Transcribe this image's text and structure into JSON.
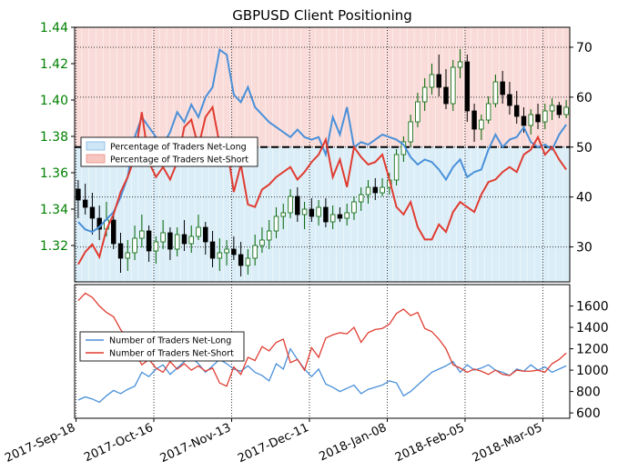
{
  "chart_data": [
    {
      "type": "candlestick",
      "title": "GBPUSD Client Positioning",
      "ylim": [
        1.3,
        1.44
      ],
      "yticks": [
        "1.32",
        "1.34",
        "1.36",
        "1.38",
        "1.40",
        "1.42",
        "1.44"
      ],
      "right_axis": {
        "ylim": [
          23,
          74
        ],
        "ticks": [
          "30",
          "40",
          "50",
          "60",
          "70"
        ]
      },
      "x_ticks": [
        "2017-Sep-18",
        "2017-Oct-16",
        "2017-Nov-13",
        "2017-Dec-11",
        "2018-Jan-08",
        "2018-Feb-05",
        "2018-Mar-05"
      ],
      "grid": "dotted, vertical at x ticks and horizontal at right-axis ticks",
      "reference_line": {
        "value": 50,
        "style": "dashed black"
      },
      "colors": {
        "price_text": "#008000",
        "candle_up": "#006400",
        "candle_down": "#000000",
        "net_long": "#4a90d9",
        "net_short": "#e03c31",
        "long_fill": "#dbeef8",
        "short_fill": "#f9dcd9"
      },
      "legend": {
        "position": "middle-left",
        "items": [
          "Percentage of Traders Net-Long",
          "Percentage of Traders Net-Short"
        ]
      },
      "candles": [
        [
          1.351,
          1.356,
          1.335,
          1.345
        ],
        [
          1.345,
          1.354,
          1.337,
          1.341
        ],
        [
          1.341,
          1.349,
          1.326,
          1.335
        ],
        [
          1.335,
          1.342,
          1.323,
          1.329
        ],
        [
          1.329,
          1.344,
          1.325,
          1.334
        ],
        [
          1.334,
          1.339,
          1.318,
          1.321
        ],
        [
          1.321,
          1.327,
          1.305,
          1.313
        ],
        [
          1.313,
          1.323,
          1.306,
          1.316
        ],
        [
          1.316,
          1.331,
          1.312,
          1.324
        ],
        [
          1.324,
          1.337,
          1.319,
          1.328
        ],
        [
          1.328,
          1.331,
          1.311,
          1.317
        ],
        [
          1.317,
          1.325,
          1.31,
          1.322
        ],
        [
          1.322,
          1.334,
          1.318,
          1.327
        ],
        [
          1.327,
          1.33,
          1.312,
          1.318
        ],
        [
          1.318,
          1.33,
          1.314,
          1.326
        ],
        [
          1.326,
          1.334,
          1.317,
          1.321
        ],
        [
          1.321,
          1.331,
          1.316,
          1.325
        ],
        [
          1.325,
          1.337,
          1.323,
          1.33
        ],
        [
          1.33,
          1.333,
          1.315,
          1.322
        ],
        [
          1.322,
          1.328,
          1.308,
          1.313
        ],
        [
          1.313,
          1.324,
          1.306,
          1.316
        ],
        [
          1.316,
          1.323,
          1.309,
          1.318
        ],
        [
          1.318,
          1.325,
          1.312,
          1.315
        ],
        [
          1.315,
          1.322,
          1.303,
          1.309
        ],
        [
          1.309,
          1.318,
          1.304,
          1.313
        ],
        [
          1.313,
          1.326,
          1.309,
          1.32
        ],
        [
          1.32,
          1.33,
          1.316,
          1.323
        ],
        [
          1.323,
          1.334,
          1.318,
          1.328
        ],
        [
          1.328,
          1.341,
          1.324,
          1.336
        ],
        [
          1.336,
          1.343,
          1.329,
          1.338
        ],
        [
          1.338,
          1.351,
          1.335,
          1.347
        ],
        [
          1.347,
          1.352,
          1.333,
          1.337
        ],
        [
          1.337,
          1.344,
          1.329,
          1.34
        ],
        [
          1.34,
          1.346,
          1.333,
          1.336
        ],
        [
          1.336,
          1.345,
          1.331,
          1.341
        ],
        [
          1.341,
          1.346,
          1.33,
          1.333
        ],
        [
          1.333,
          1.342,
          1.329,
          1.337
        ],
        [
          1.337,
          1.341,
          1.333,
          1.335
        ],
        [
          1.335,
          1.343,
          1.331,
          1.338
        ],
        [
          1.338,
          1.347,
          1.334,
          1.344
        ],
        [
          1.344,
          1.352,
          1.339,
          1.348
        ],
        [
          1.348,
          1.356,
          1.343,
          1.352
        ],
        [
          1.352,
          1.357,
          1.345,
          1.349
        ],
        [
          1.349,
          1.357,
          1.347,
          1.352
        ],
        [
          1.352,
          1.36,
          1.348,
          1.356
        ],
        [
          1.356,
          1.373,
          1.353,
          1.37
        ],
        [
          1.37,
          1.38,
          1.366,
          1.377
        ],
        [
          1.377,
          1.392,
          1.374,
          1.388
        ],
        [
          1.388,
          1.404,
          1.385,
          1.399
        ],
        [
          1.399,
          1.412,
          1.394,
          1.407
        ],
        [
          1.407,
          1.42,
          1.403,
          1.414
        ],
        [
          1.414,
          1.425,
          1.402,
          1.407
        ],
        [
          1.407,
          1.417,
          1.395,
          1.398
        ],
        [
          1.398,
          1.422,
          1.394,
          1.418
        ],
        [
          1.418,
          1.428,
          1.412,
          1.421
        ],
        [
          1.421,
          1.425,
          1.388,
          1.394
        ],
        [
          1.394,
          1.398,
          1.377,
          1.384
        ],
        [
          1.384,
          1.392,
          1.378,
          1.389
        ],
        [
          1.389,
          1.402,
          1.387,
          1.398
        ],
        [
          1.398,
          1.414,
          1.396,
          1.41
        ],
        [
          1.41,
          1.416,
          1.398,
          1.403
        ],
        [
          1.403,
          1.41,
          1.392,
          1.397
        ],
        [
          1.397,
          1.405,
          1.387,
          1.391
        ],
        [
          1.391,
          1.396,
          1.382,
          1.386
        ],
        [
          1.386,
          1.395,
          1.381,
          1.392
        ],
        [
          1.392,
          1.398,
          1.384,
          1.388
        ],
        [
          1.388,
          1.398,
          1.384,
          1.394
        ],
        [
          1.394,
          1.401,
          1.389,
          1.397
        ],
        [
          1.397,
          1.399,
          1.39,
          1.392
        ],
        [
          1.392,
          1.4,
          1.39,
          1.396
        ]
      ],
      "pct_net_long": [
        35.0,
        33.5,
        33.0,
        34.0,
        35.5,
        37.0,
        40.0,
        44.0,
        52.0,
        56.0,
        54.0,
        52.0,
        50.5,
        53.0,
        57.0,
        55.0,
        58.5,
        56.0,
        60.0,
        62.0,
        69.5,
        68.5,
        60.5,
        59.0,
        62.0,
        58.0,
        56.5,
        55.0,
        54.0,
        53.0,
        52.0,
        53.5,
        52.0,
        51.5,
        52.0,
        48.5,
        56.0,
        52.5,
        58.0,
        50.0,
        51.0,
        50.5,
        51.5,
        52.5,
        52.0,
        51.5,
        50.5,
        48.0,
        46.5,
        47.5,
        47.0,
        45.5,
        43.5,
        46.0,
        47.5,
        44.0,
        45.0,
        45.5,
        49.5,
        52.5,
        50.0,
        51.5,
        52.0,
        54.0,
        51.0,
        50.0,
        50.5,
        49.5,
        52.5,
        54.5
      ],
      "pct_net_short": [
        26.5,
        29.0,
        30.5,
        28.0,
        33.5,
        36.5,
        41.0,
        44.0,
        48.0,
        57.0,
        47.0,
        44.0,
        46.0,
        43.5,
        47.0,
        54.0,
        55.5,
        50.0,
        56.0,
        58.0,
        50.5,
        50.5,
        41.0,
        46.5,
        38.5,
        38.0,
        41.5,
        42.5,
        44.0,
        45.0,
        46.0,
        43.5,
        45.0,
        47.0,
        48.5,
        51.5,
        44.0,
        47.5,
        42.0,
        50.0,
        48.0,
        46.5,
        47.0,
        48.5,
        43.5,
        38.0,
        36.5,
        39.0,
        34.0,
        31.5,
        31.5,
        34.5,
        33.0,
        37.0,
        39.0,
        38.0,
        37.0,
        40.5,
        43.0,
        43.5,
        45.0,
        46.0,
        45.0,
        48.5,
        49.5,
        52.0,
        48.5,
        50.0,
        47.5,
        45.5
      ]
    },
    {
      "type": "line",
      "ylim": [
        550,
        1800
      ],
      "yticks": [
        "600",
        "800",
        "1000",
        "1200",
        "1400",
        "1600"
      ],
      "legend": {
        "position": "middle-left",
        "items": [
          "Number of Traders Net-Long",
          "Number of Traders Net-Short"
        ]
      },
      "series": [
        {
          "name": "Number of Traders Net-Long",
          "color": "#4a90d9",
          "values": [
            720,
            750,
            730,
            700,
            760,
            810,
            780,
            820,
            850,
            980,
            940,
            1010,
            1050,
            960,
            1020,
            1080,
            1120,
            1060,
            980,
            1040,
            1100,
            1060,
            1010,
            990,
            1040,
            980,
            950,
            900,
            1060,
            1010,
            1200,
            1100,
            1010,
            940,
            1010,
            870,
            840,
            800,
            830,
            860,
            780,
            820,
            840,
            860,
            900,
            880,
            760,
            800,
            860,
            920,
            980,
            1010,
            1040,
            1080,
            980,
            1050,
            1000,
            1020,
            1050,
            1000,
            980,
            950,
            1010,
            990,
            1050,
            1000,
            1030,
            980,
            1010,
            1040
          ]
        },
        {
          "name": "Number of Traders Net-Short",
          "color": "#e03c31",
          "values": [
            1650,
            1720,
            1680,
            1600,
            1540,
            1500,
            1380,
            1290,
            1170,
            1050,
            1100,
            1020,
            980,
            1080,
            1010,
            1060,
            1000,
            1040,
            990,
            1020,
            880,
            850,
            1030,
            960,
            1120,
            1090,
            1220,
            1180,
            1260,
            1290,
            1070,
            1100,
            1000,
            1210,
            1120,
            1300,
            1330,
            1350,
            1340,
            1400,
            1260,
            1350,
            1380,
            1390,
            1430,
            1530,
            1570,
            1510,
            1540,
            1390,
            1360,
            1290,
            1200,
            1050,
            1020,
            980,
            1010,
            990,
            960,
            1000,
            960,
            950,
            1000,
            990,
            990,
            1000,
            980,
            1060,
            1100,
            1160
          ]
        }
      ]
    }
  ]
}
